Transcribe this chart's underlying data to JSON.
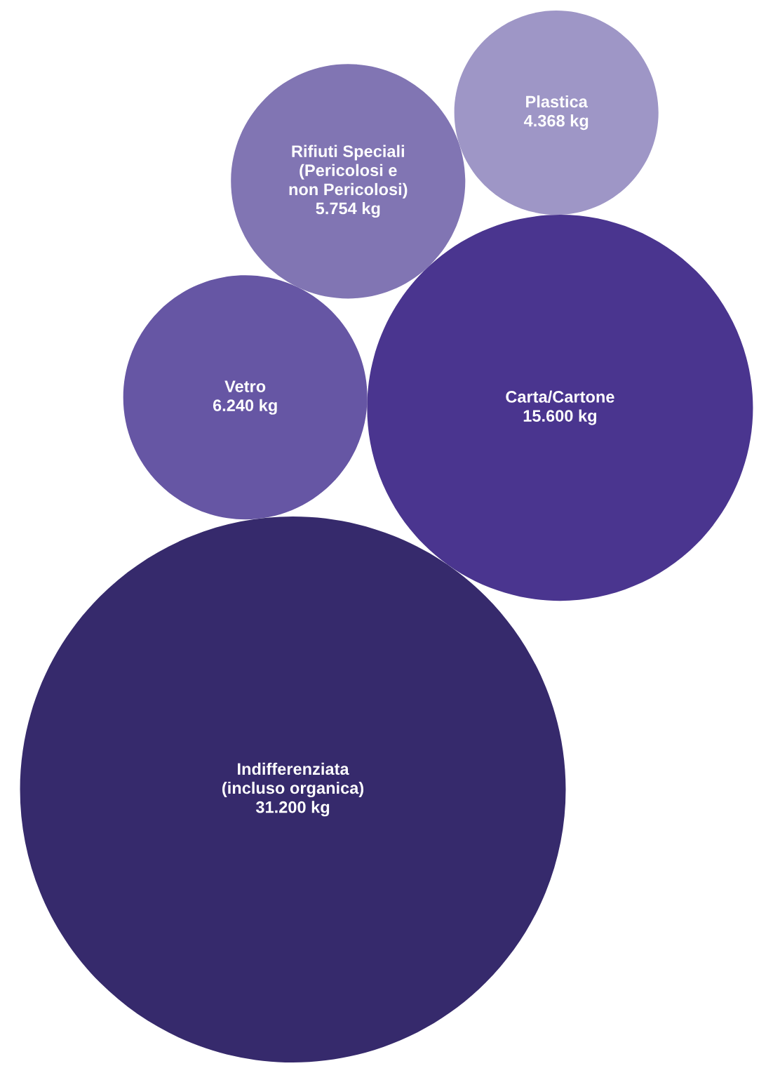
{
  "chart_data": {
    "type": "other",
    "categories": [
      "Plastica",
      "Rifiuti Speciali\n(Pericolosi e\nnon Pericolosi)",
      "Vetro",
      "Carta/Cartone",
      "Indifferenziata\n(incluso organica)"
    ],
    "values": [
      4368,
      5754,
      6240,
      15600,
      31200
    ],
    "value_labels": [
      "4.368 kg",
      "5.754 kg",
      "6.240 kg",
      "15.600 kg",
      "31.200 kg"
    ],
    "colors": [
      "#9e96c6",
      "#8175b3",
      "#6656a4",
      "#4a358f",
      "#362a6c"
    ]
  }
}
